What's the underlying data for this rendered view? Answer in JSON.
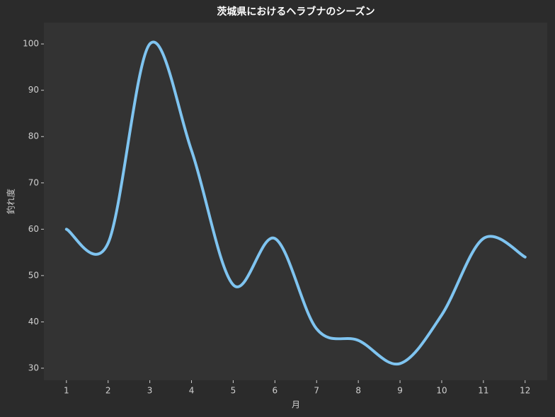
{
  "chart_data": {
    "type": "line",
    "title": "茨城県におけるヘラブナのシーズン",
    "x_label": "月",
    "y_label": "釣れ度",
    "x": [
      1,
      2,
      3,
      4,
      5,
      6,
      7,
      8,
      9,
      10,
      11,
      12
    ],
    "series": [
      {
        "name": "釣れ度",
        "color": "#7fc4f0",
        "values": [
          60,
          57,
          100,
          77,
          48,
          58,
          38.5,
          36,
          31,
          41.5,
          58,
          54
        ]
      }
    ],
    "xlim": [
      0.46,
      12.53
    ],
    "xticks": [
      1,
      2,
      3,
      4,
      5,
      6,
      7,
      8,
      9,
      10,
      11,
      12
    ],
    "ylim": [
      27.4,
      104.6
    ],
    "yticks": [
      30,
      40,
      50,
      60,
      70,
      80,
      90,
      100
    ],
    "grid": false
  }
}
